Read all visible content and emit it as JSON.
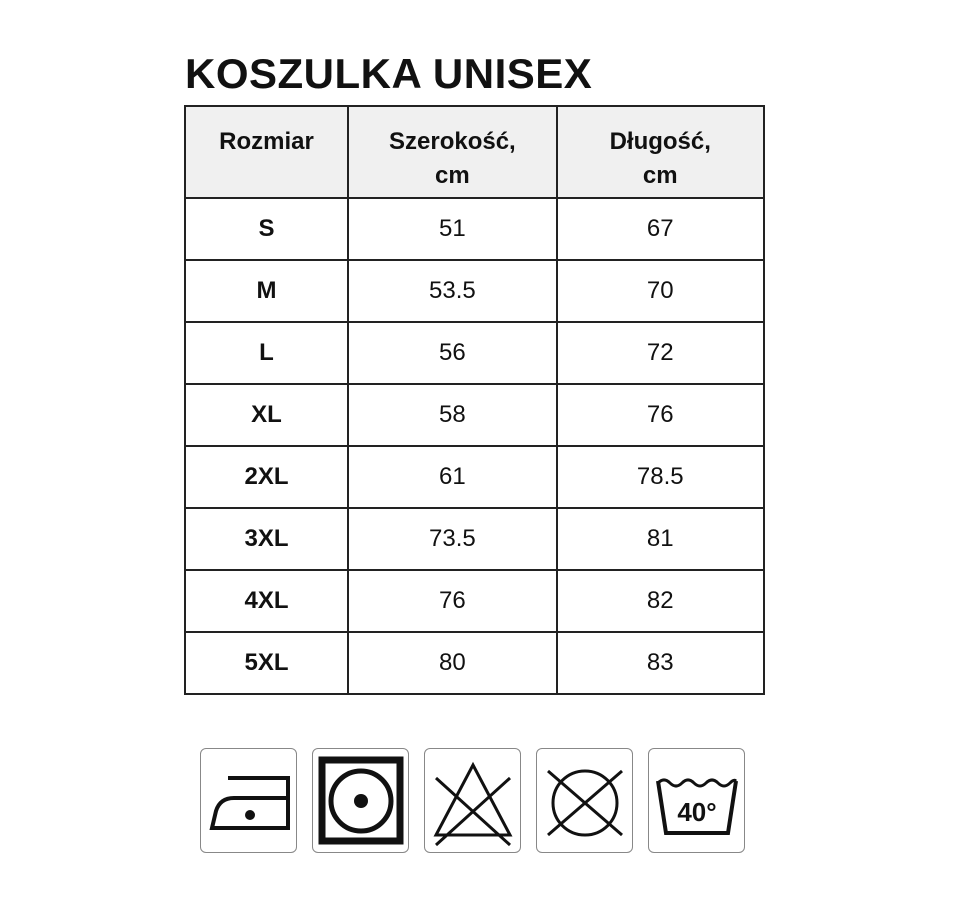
{
  "title": "KOSZULKA UNISEX",
  "table": {
    "headers": [
      "Rozmiar",
      "Szerokość, cm",
      "Długość, cm"
    ],
    "rows": [
      [
        "S",
        "51",
        "67"
      ],
      [
        "M",
        "53.5",
        "70"
      ],
      [
        "L",
        "56",
        "72"
      ],
      [
        "XL",
        "58",
        "76"
      ],
      [
        "2XL",
        "61",
        "78.5"
      ],
      [
        "3XL",
        "73.5",
        "81"
      ],
      [
        "4XL",
        "76",
        "82"
      ],
      [
        "5XL",
        "80",
        "83"
      ]
    ]
  },
  "care_icons": [
    {
      "icon": "iron-low-temperature-icon"
    },
    {
      "icon": "tumble-dry-icon"
    },
    {
      "icon": "do-not-bleach-icon"
    },
    {
      "icon": "do-not-dry-clean-icon"
    },
    {
      "icon": "wash-40-icon",
      "label": "40°"
    }
  ]
}
